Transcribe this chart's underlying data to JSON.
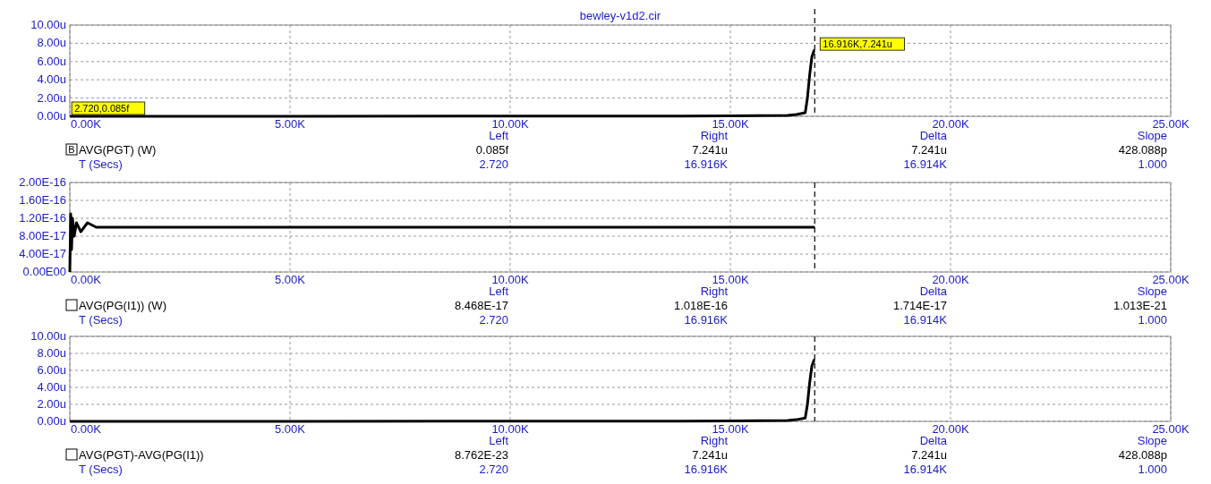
{
  "chart_data": [
    {
      "type": "line",
      "title": "bewley-v1d2.cir",
      "xlabel": "T (Secs)",
      "x": [
        0,
        2.72,
        5000,
        10000,
        15000,
        16300,
        16500,
        16700,
        16750,
        16800,
        16850,
        16900,
        16916
      ],
      "series": [
        {
          "name": "AVG(PGT) (W)",
          "color": "#000000",
          "values": [
            0,
            0,
            0.01,
            0.02,
            0.04,
            0.1,
            0.2,
            0.4,
            2,
            4.5,
            6.5,
            7.2,
            7.24
          ]
        }
      ],
      "xlim": [
        0,
        25000
      ],
      "xticks": [
        {
          "value": 0,
          "label": "0.00K"
        },
        {
          "value": 5000,
          "label": "5.00K"
        },
        {
          "value": 10000,
          "label": "10.00K"
        },
        {
          "value": 15000,
          "label": "15.00K"
        },
        {
          "value": 20000,
          "label": "20.00K"
        },
        {
          "value": 25000,
          "label": "25.00K"
        }
      ],
      "ylim": [
        0,
        10
      ],
      "yticks": [
        {
          "value": 0,
          "label": "0.00u"
        },
        {
          "value": 2,
          "label": "2.00u"
        },
        {
          "value": 4,
          "label": "4.00u"
        },
        {
          "value": 6,
          "label": "6.00u"
        },
        {
          "value": 8,
          "label": "8.00u"
        },
        {
          "value": 10,
          "label": "10.00u"
        }
      ],
      "grid": true,
      "legend": "bottom left",
      "ref_lines": [
        {
          "axis": "x",
          "value": 16916,
          "line_style": "dashed",
          "color": "#000000"
        }
      ],
      "annotations": [
        "Left",
        "Right",
        "Delta",
        "Slope",
        "0.085f",
        "7.241u",
        "7.241u",
        "428.088p",
        "2.720",
        "16.916K",
        "16.914K",
        "1.000",
        "B",
        {
          "text": "2.720,0.085f",
          "x": 2.72,
          "y": 0
        },
        {
          "text": "16.916K,7.241u",
          "x": 16916,
          "y": 7.241
        }
      ]
    },
    {
      "type": "line",
      "xlabel": "T (Secs)",
      "x": [
        0,
        20,
        40,
        60,
        100,
        150,
        250,
        400,
        600,
        1000,
        5000,
        10000,
        16916
      ],
      "series": [
        {
          "name": "AVG(PG(I1)) (W)",
          "color": "#000000",
          "values": [
            0,
            1.3e-16,
            5e-17,
            1.2e-16,
            8e-17,
            1.1e-16,
            9e-17,
            1.1e-16,
            1e-16,
            1e-16,
            1e-16,
            1e-16,
            1e-16
          ]
        }
      ],
      "xlim": [
        0,
        25000
      ],
      "xticks": [
        {
          "value": 0,
          "label": "0.00K"
        },
        {
          "value": 5000,
          "label": "5.00K"
        },
        {
          "value": 10000,
          "label": "10.00K"
        },
        {
          "value": 15000,
          "label": "15.00K"
        },
        {
          "value": 20000,
          "label": "20.00K"
        },
        {
          "value": 25000,
          "label": "25.00K"
        }
      ],
      "ylim": [
        0,
        2e-16
      ],
      "yticks": [
        {
          "value": 0,
          "label": "0.00E00"
        },
        {
          "value": 4e-17,
          "label": "4.00E-17"
        },
        {
          "value": 8e-17,
          "label": "8.00E-17"
        },
        {
          "value": 1.2e-16,
          "label": "1.20E-16"
        },
        {
          "value": 1.6e-16,
          "label": "1.60E-16"
        },
        {
          "value": 2e-16,
          "label": "2.00E-16"
        }
      ],
      "grid": true,
      "legend": "bottom left",
      "ref_lines": [
        {
          "axis": "x",
          "value": 16916,
          "line_style": "dashed",
          "color": "#000000"
        }
      ],
      "annotations": [
        "Left",
        "Right",
        "Delta",
        "Slope",
        "8.468E-17",
        "1.018E-16",
        "1.714E-17",
        "1.013E-21",
        "2.720",
        "16.916K",
        "16.914K",
        "1.000"
      ]
    },
    {
      "type": "line",
      "xlabel": "T (Secs)",
      "x": [
        0,
        2.72,
        5000,
        10000,
        15000,
        16300,
        16500,
        16700,
        16750,
        16800,
        16850,
        16900,
        16916
      ],
      "series": [
        {
          "name": "AVG(PGT)-AVG(PG(I1))",
          "color": "#000000",
          "values": [
            0,
            0,
            0.01,
            0.02,
            0.04,
            0.1,
            0.2,
            0.4,
            2,
            4.5,
            6.5,
            7.2,
            7.24
          ]
        }
      ],
      "xlim": [
        0,
        25000
      ],
      "xticks": [
        {
          "value": 0,
          "label": "0.00K"
        },
        {
          "value": 5000,
          "label": "5.00K"
        },
        {
          "value": 10000,
          "label": "10.00K"
        },
        {
          "value": 15000,
          "label": "15.00K"
        },
        {
          "value": 20000,
          "label": "20.00K"
        },
        {
          "value": 25000,
          "label": "25.00K"
        }
      ],
      "ylim": [
        0,
        10
      ],
      "yticks": [
        {
          "value": 0,
          "label": "0.00u"
        },
        {
          "value": 2,
          "label": "2.00u"
        },
        {
          "value": 4,
          "label": "4.00u"
        },
        {
          "value": 6,
          "label": "6.00u"
        },
        {
          "value": 8,
          "label": "8.00u"
        },
        {
          "value": 10,
          "label": "10.00u"
        }
      ],
      "grid": true,
      "legend": "bottom left",
      "ref_lines": [
        {
          "axis": "x",
          "value": 16916,
          "line_style": "dashed",
          "color": "#000000"
        }
      ],
      "annotations": [
        "Left",
        "Right",
        "Delta",
        "Slope",
        "8.762E-23",
        "7.241u",
        "7.241u",
        "428.088p",
        "2.720",
        "16.916K",
        "16.914K",
        "1.000"
      ]
    }
  ]
}
